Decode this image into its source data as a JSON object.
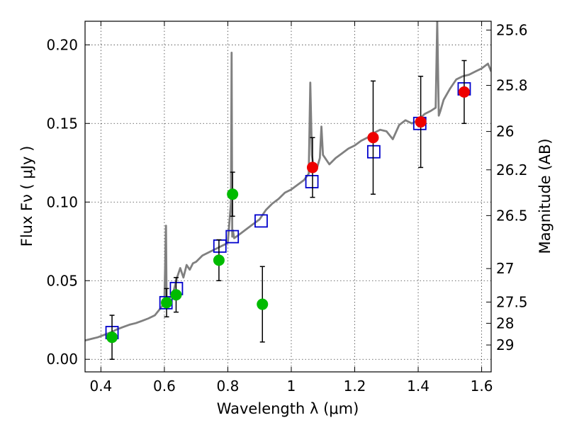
{
  "chart_data": {
    "type": "scatter",
    "xlabel": "Wavelength  λ (μm)",
    "ylabel": "Flux  Fν ( μJy )",
    "y2label": "Magnitude (AB)",
    "xlim": [
      0.35,
      1.63
    ],
    "ylim": [
      -0.008,
      0.215
    ],
    "grid": true,
    "x_ticks": [
      0.4,
      0.6,
      0.8,
      1.0,
      1.2,
      1.4,
      1.6
    ],
    "x_tick_labels": [
      "0.4",
      "0.6",
      "0.8",
      "1",
      "1.2",
      "1.4",
      "1.6"
    ],
    "y_ticks": [
      0.0,
      0.05,
      0.1,
      0.15,
      0.2
    ],
    "y_tick_labels": [
      "0.00",
      "0.05",
      "0.10",
      "0.15",
      "0.20"
    ],
    "y2_ticks": [
      {
        "label": "25.6",
        "flux": 0.2094
      },
      {
        "label": "25.8",
        "flux": 0.1742
      },
      {
        "label": "26",
        "flux": 0.1449
      },
      {
        "label": "26.2",
        "flux": 0.1205
      },
      {
        "label": "26.5",
        "flux": 0.0914
      },
      {
        "label": "27",
        "flux": 0.0577
      },
      {
        "label": "27.5",
        "flux": 0.0364
      },
      {
        "label": "28",
        "flux": 0.0229
      },
      {
        "label": "29",
        "flux": 0.0091
      }
    ],
    "colors": {
      "model": "#808080",
      "synthetic": "#0000cc",
      "green": "#00bb00",
      "red": "#ee0000",
      "errorbar": "#000000"
    },
    "series": [
      {
        "kind": "line",
        "x": [
          0.35,
          0.37,
          0.39,
          0.41,
          0.43,
          0.45,
          0.47,
          0.49,
          0.51,
          0.53,
          0.55,
          0.57,
          0.59,
          0.6,
          0.605,
          0.607,
          0.61,
          0.62,
          0.63,
          0.64,
          0.65,
          0.66,
          0.67,
          0.68,
          0.69,
          0.7,
          0.72,
          0.74,
          0.76,
          0.78,
          0.8,
          0.81,
          0.812,
          0.814,
          0.816,
          0.82,
          0.84,
          0.86,
          0.88,
          0.9,
          0.92,
          0.94,
          0.96,
          0.98,
          1.0,
          1.02,
          1.04,
          1.055,
          1.06,
          1.065,
          1.07,
          1.08,
          1.09,
          1.095,
          1.1,
          1.12,
          1.14,
          1.16,
          1.18,
          1.2,
          1.22,
          1.24,
          1.26,
          1.28,
          1.3,
          1.32,
          1.34,
          1.36,
          1.38,
          1.4,
          1.42,
          1.44,
          1.455,
          1.46,
          1.465,
          1.47,
          1.48,
          1.5,
          1.52,
          1.54,
          1.56,
          1.58,
          1.6,
          1.62,
          1.63
        ],
        "y": [
          0.012,
          0.013,
          0.014,
          0.0155,
          0.017,
          0.019,
          0.0205,
          0.022,
          0.023,
          0.0245,
          0.026,
          0.028,
          0.033,
          0.036,
          0.085,
          0.04,
          0.037,
          0.04,
          0.044,
          0.052,
          0.058,
          0.052,
          0.06,
          0.057,
          0.061,
          0.062,
          0.066,
          0.068,
          0.07,
          0.072,
          0.074,
          0.1,
          0.195,
          0.078,
          0.082,
          0.077,
          0.08,
          0.083,
          0.086,
          0.089,
          0.095,
          0.099,
          0.102,
          0.106,
          0.108,
          0.111,
          0.114,
          0.118,
          0.176,
          0.13,
          0.122,
          0.121,
          0.128,
          0.148,
          0.13,
          0.124,
          0.128,
          0.131,
          0.134,
          0.136,
          0.139,
          0.141,
          0.144,
          0.146,
          0.145,
          0.14,
          0.149,
          0.152,
          0.15,
          0.152,
          0.156,
          0.158,
          0.16,
          0.215,
          0.155,
          0.158,
          0.165,
          0.172,
          0.178,
          0.18,
          0.181,
          0.183,
          0.185,
          0.188,
          0.183
        ]
      },
      {
        "kind": "open-squares",
        "x": [
          0.435,
          0.605,
          0.638,
          0.775,
          0.814,
          0.905,
          1.065,
          1.26,
          1.405,
          1.545
        ],
        "y": [
          0.017,
          0.036,
          0.045,
          0.072,
          0.078,
          0.088,
          0.113,
          0.132,
          0.15,
          0.172
        ]
      },
      {
        "kind": "green-points",
        "x": [
          0.435,
          0.607,
          0.637,
          0.772,
          0.815,
          0.909
        ],
        "y": [
          0.014,
          0.036,
          0.041,
          0.063,
          0.105,
          0.035
        ],
        "err": [
          0.014,
          0.009,
          0.011,
          0.013,
          0.014,
          0.024
        ]
      },
      {
        "kind": "red-points",
        "x": [
          1.067,
          1.258,
          1.408,
          1.545
        ],
        "y": [
          0.122,
          0.141,
          0.151,
          0.17
        ],
        "err": [
          0.019,
          0.036,
          0.029,
          0.02
        ]
      }
    ]
  }
}
